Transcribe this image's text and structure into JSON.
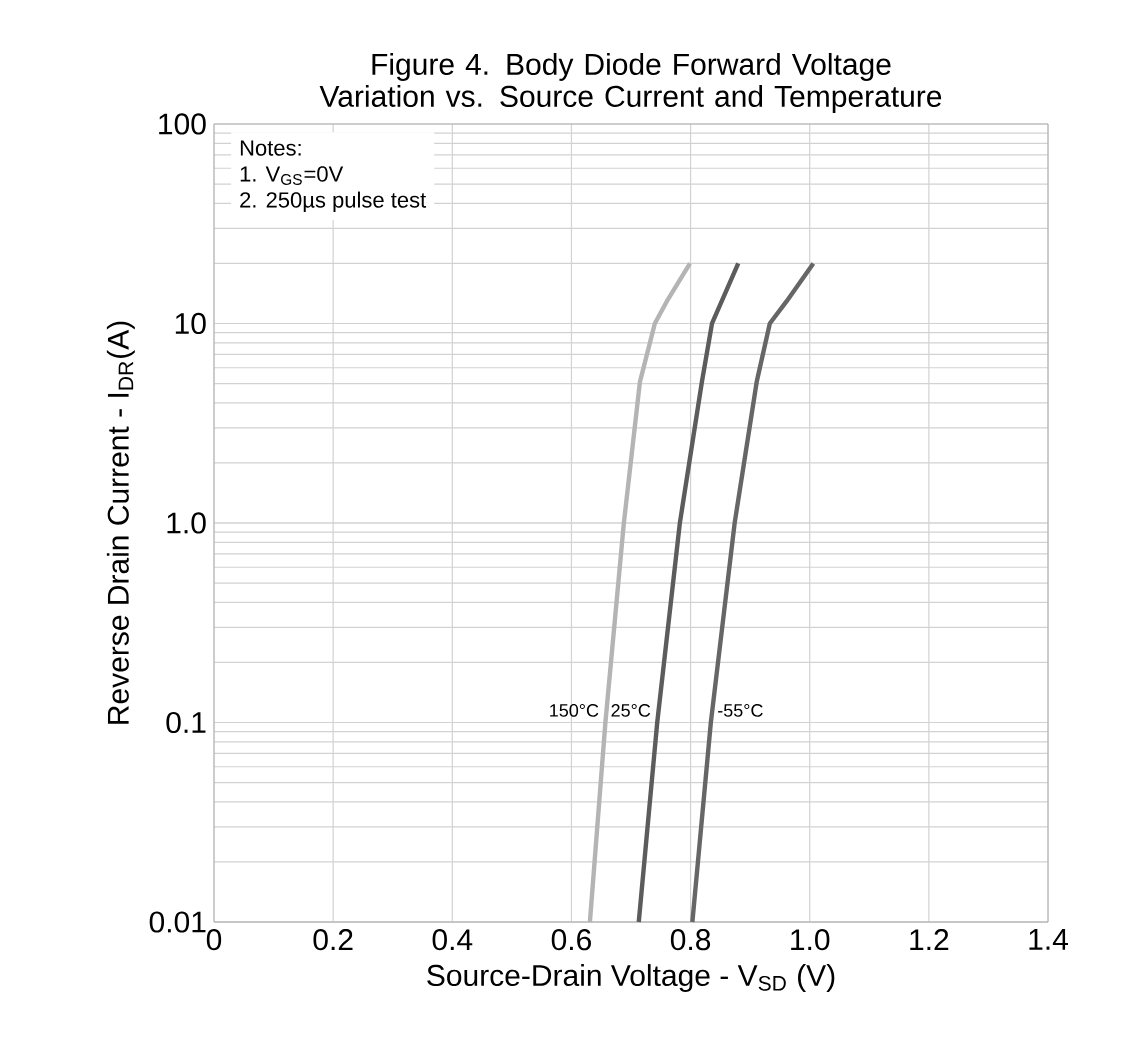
{
  "chart_data": {
    "type": "line",
    "title": "Figure 4. Body Diode Forward Voltage Variation vs. Source Current and Temperature",
    "xlabel": "Source-Drain Voltage - V$_{SD}$ (V)",
    "ylabel": "Reverse Drain Current - I$_{DR}$(A)",
    "annotations": [
      "Notes:",
      "1. V$_{GS}$=0V",
      "2. 250µs pulse test"
    ],
    "log": "y",
    "grid": true,
    "legend": false,
    "marker": "none",
    "line_style": "solid",
    "xlim": [
      0,
      1.4
    ],
    "ylim": [
      0.01,
      100
    ],
    "xticks": [
      0,
      0.2,
      0.4,
      0.6,
      0.8,
      {
        "value": 1.0,
        "label": "1.0"
      },
      1.2,
      1.4
    ],
    "yticks": [
      0.01,
      0.1,
      {
        "value": 1.0,
        "label": "1.0"
      },
      10,
      100
    ],
    "series": [
      {
        "name": "150°C",
        "color": "#b4b4b4",
        "x": [
          0.631,
          0.657,
          0.688,
          0.715,
          0.74,
          0.76,
          0.799
        ],
        "values": [
          0.01,
          0.1,
          1,
          5.1,
          10,
          12.9,
          20
        ]
      },
      {
        "name": "25°C",
        "color": "#5c5c5c",
        "x": [
          0.713,
          0.744,
          0.782,
          0.819,
          0.836,
          0.88
        ],
        "values": [
          0.01,
          0.1,
          1,
          5.1,
          10,
          20
        ]
      },
      {
        "name": "-55°C",
        "color": "#666666",
        "x": [
          0.803,
          0.834,
          0.874,
          0.911,
          0.933,
          0.961,
          1.006
        ],
        "values": [
          0.01,
          0.1,
          1,
          5.1,
          10,
          12.9,
          20
        ]
      }
    ]
  }
}
